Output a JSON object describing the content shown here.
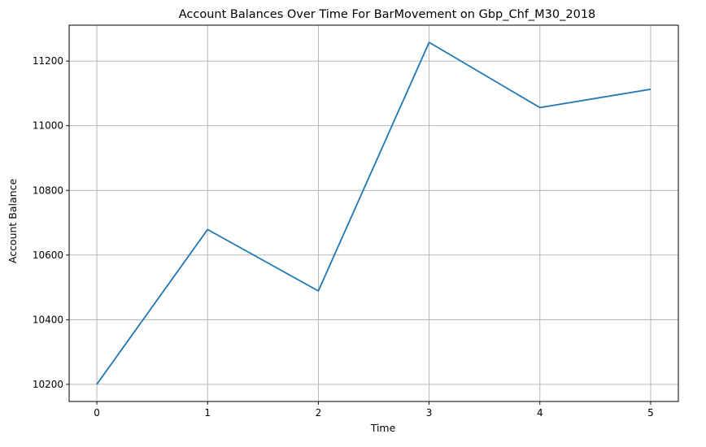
{
  "chart_data": {
    "type": "line",
    "title": "Account Balances Over Time For BarMovement on Gbp_Chf_M30_2018",
    "xlabel": "Time",
    "ylabel": "Account Balance",
    "x": [
      0,
      1,
      2,
      3,
      4,
      5
    ],
    "series": [
      {
        "values": [
          10200,
          10679,
          10489,
          11258,
          11056,
          11113
        ]
      }
    ],
    "xticks": [
      "0",
      "1",
      "2",
      "3",
      "4",
      "5"
    ],
    "yticks": [
      "10200",
      "10400",
      "10600",
      "10800",
      "11000",
      "11200"
    ],
    "xlim": [
      -0.25,
      5.25
    ],
    "ylim": [
      10147,
      11311
    ],
    "grid": true,
    "line_color": "#1f77b4",
    "grid_color": "#b0b0b0"
  }
}
